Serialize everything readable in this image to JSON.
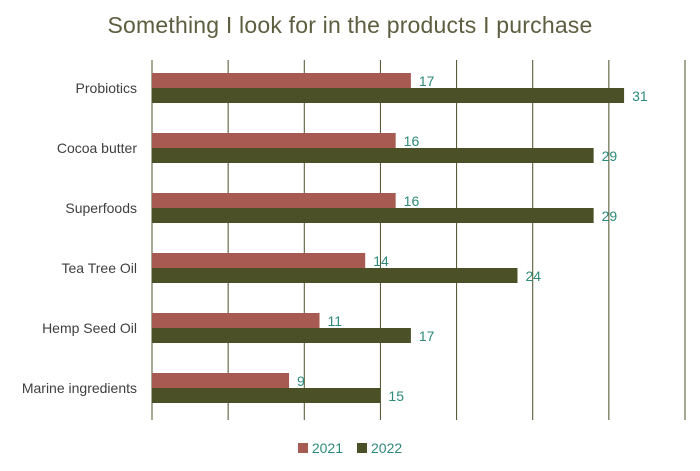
{
  "chart_data": {
    "type": "bar",
    "orientation": "horizontal",
    "title": "Something I look for in the products I purchase",
    "categories": [
      "Probiotics",
      "Cocoa butter",
      "Superfoods",
      "Tea Tree Oil",
      "Hemp Seed Oil",
      "Marine ingredients"
    ],
    "series": [
      {
        "name": "2021",
        "values": [
          17,
          16,
          16,
          14,
          11,
          9
        ],
        "color": "#a65a52"
      },
      {
        "name": "2022",
        "values": [
          31,
          29,
          29,
          24,
          17,
          15
        ],
        "color": "#4b5026"
      }
    ],
    "xlim": [
      0,
      35
    ],
    "grid": true,
    "legend": "bottom",
    "label_color": "#2e8a7a",
    "grid_color": "#4b5026"
  }
}
